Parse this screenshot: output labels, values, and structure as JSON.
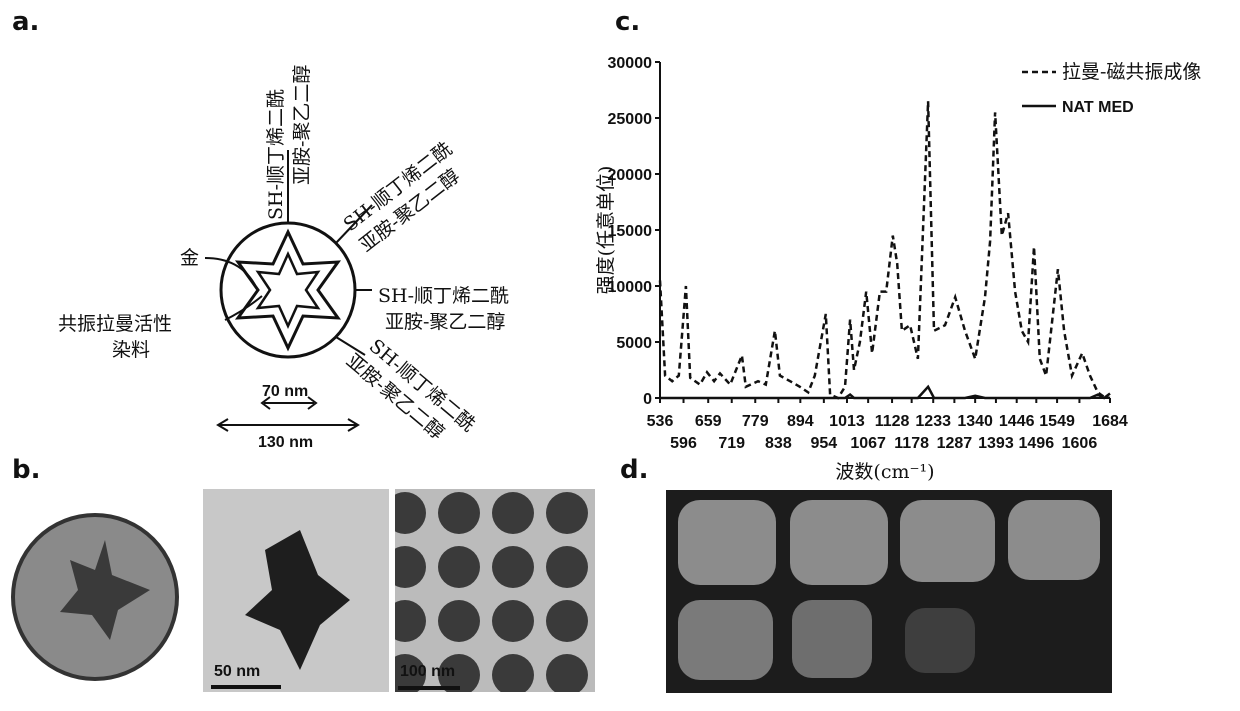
{
  "panel_labels": [
    "a.",
    "b.",
    "c.",
    "d."
  ],
  "diagram": {
    "ligands": [
      [
        "SH-顺丁烯二酰",
        "亚胺-聚乙二醇"
      ],
      [
        "SH-顺丁烯二酰",
        "亚胺-聚乙二醇"
      ],
      [
        "SH-顺丁烯二酰",
        "亚胺-聚乙二醇"
      ],
      [
        "SH-顺丁烯二酰",
        "亚胺-聚乙二醇"
      ]
    ],
    "gold": "金",
    "dye": [
      "共振拉曼活性",
      "染料"
    ],
    "inner_size": "70 nm",
    "outer_size": "130 nm"
  },
  "micrographs": {
    "scale_bars": [
      "50 nm",
      "100 nm"
    ]
  },
  "chart_data": {
    "type": "line",
    "xlabel": "波数(cm⁻¹)",
    "ylabel": "强度(任意单位)",
    "x": [
      536,
      549,
      567,
      584,
      602,
      613,
      638,
      656,
      674,
      689,
      715,
      745,
      755,
      786,
      806,
      829,
      842,
      868,
      893,
      914,
      931,
      959,
      970,
      990,
      1008,
      1021,
      1031,
      1046,
      1062,
      1077,
      1097,
      1113,
      1130,
      1141,
      1153,
      1174,
      1194,
      1220,
      1235,
      1263,
      1289,
      1314,
      1340,
      1365,
      1378,
      1391,
      1408,
      1424,
      1442,
      1459,
      1475,
      1490,
      1505,
      1521,
      1551,
      1567,
      1587,
      1613,
      1633,
      1653,
      1669,
      1684
    ],
    "series": [
      {
        "name": "拉曼-磁共振成像",
        "color": "#111111",
        "dash": true,
        "values": [
          10500,
          2000,
          1500,
          2000,
          10000,
          1800,
          1200,
          2300,
          1500,
          2200,
          1200,
          3800,
          1000,
          1500,
          1200,
          6000,
          2000,
          1500,
          1000,
          500,
          2000,
          7500,
          300,
          0,
          1000,
          7000,
          2500,
          5000,
          9500,
          4000,
          9500,
          9500,
          14500,
          12000,
          6000,
          6500,
          3500,
          26500,
          6000,
          6500,
          9000,
          6000,
          3500,
          9000,
          14000,
          25500,
          14500,
          16500,
          9500,
          6000,
          5000,
          13500,
          3500,
          2000,
          11500,
          6000,
          2000,
          4000,
          2000,
          500,
          100,
          0
        ]
      },
      {
        "name": "NAT MED",
        "color": "#111111",
        "dash": false,
        "values": [
          0,
          0,
          0,
          0,
          0,
          0,
          0,
          0,
          0,
          0,
          0,
          0,
          0,
          0,
          0,
          0,
          0,
          0,
          0,
          0,
          0,
          0,
          0,
          0,
          0,
          300,
          0,
          0,
          0,
          0,
          0,
          0,
          0,
          0,
          0,
          0,
          0,
          1000,
          0,
          0,
          0,
          0,
          200,
          0,
          0,
          0,
          0,
          0,
          0,
          0,
          0,
          0,
          0,
          0,
          0,
          0,
          0,
          0,
          0,
          300,
          0,
          400
        ]
      }
    ],
    "xlim": [
      536,
      1684
    ],
    "ylim": [
      0,
      30000
    ],
    "xticks": [
      536,
      596,
      659,
      719,
      779,
      838,
      894,
      954,
      1013,
      1067,
      1128,
      1178,
      1233,
      1287,
      1340,
      1393,
      1446,
      1496,
      1549,
      1606,
      1684
    ],
    "yticks": [
      0,
      5000,
      10000,
      15000,
      20000,
      25000,
      30000
    ],
    "legend": "top-right",
    "grid": false
  }
}
